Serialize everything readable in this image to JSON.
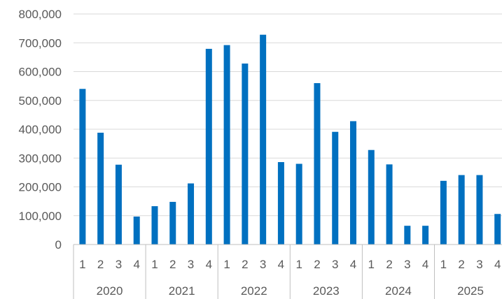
{
  "chart_data": {
    "type": "bar",
    "title": "",
    "xlabel": "",
    "ylabel": "",
    "ylim": [
      0,
      800000
    ],
    "y_ticks": [
      "0",
      "100,000",
      "200,000",
      "300,000",
      "400,000",
      "500,000",
      "600,000",
      "700,000",
      "800,000"
    ],
    "grid": "horizontal",
    "legend": "none",
    "bar_color": "#0070c0",
    "years": [
      "2020",
      "2021",
      "2022",
      "2023",
      "2024",
      "2025"
    ],
    "categories": [
      "1",
      "2",
      "3",
      "4",
      "1",
      "2",
      "3",
      "4",
      "1",
      "2",
      "3",
      "4",
      "1",
      "2",
      "3",
      "4",
      "1",
      "2",
      "3",
      "4",
      "1",
      "2",
      "3",
      "4"
    ],
    "values": [
      540000,
      388000,
      277000,
      97000,
      133000,
      148000,
      212000,
      679000,
      692000,
      628000,
      728000,
      286000,
      280000,
      560000,
      391000,
      428000,
      328000,
      278000,
      65000,
      65000,
      221000,
      241000,
      241000,
      106000
    ]
  }
}
